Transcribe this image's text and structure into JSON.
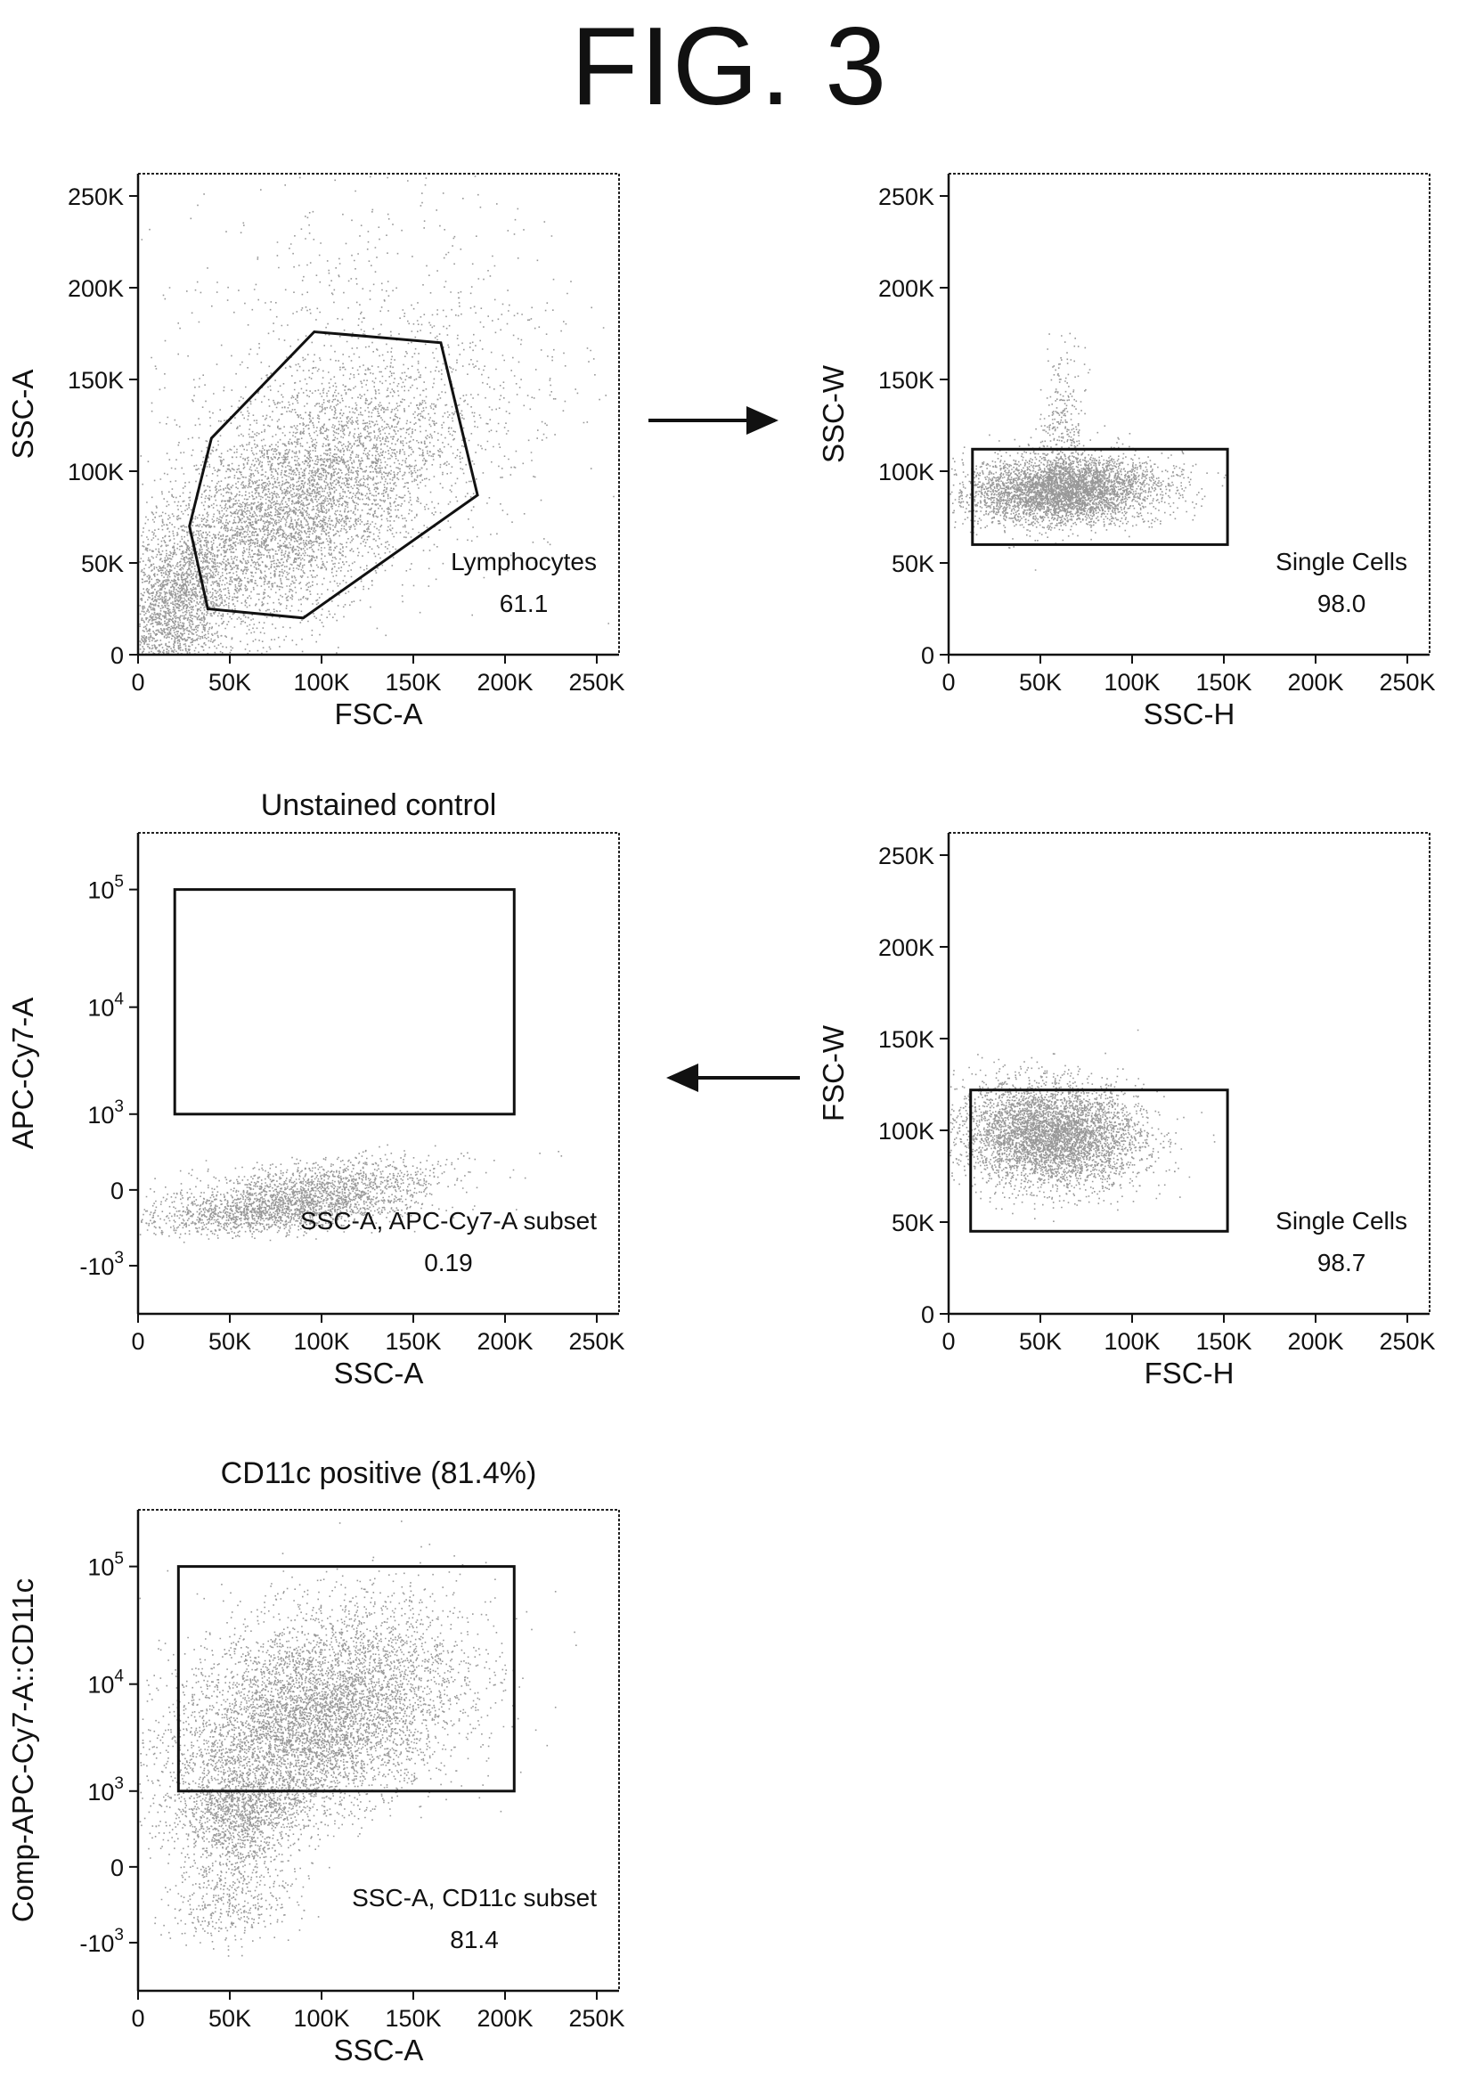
{
  "figure": {
    "title": "FIG. 3"
  },
  "chart_data": [
    {
      "type": "scatter",
      "id": "p1",
      "title": "",
      "xlabel": "FSC-A",
      "ylabel": "SSC-A",
      "xscale": "linear",
      "yscale": "linear",
      "xlim": [
        0,
        262144
      ],
      "ylim": [
        0,
        262144
      ],
      "xticks": [
        {
          "v": 0,
          "label": "0"
        },
        {
          "v": 50000,
          "label": "50K"
        },
        {
          "v": 100000,
          "label": "100K"
        },
        {
          "v": 150000,
          "label": "150K"
        },
        {
          "v": 200000,
          "label": "200K"
        },
        {
          "v": 250000,
          "label": "250K"
        }
      ],
      "yticks": [
        {
          "v": 0,
          "label": "0"
        },
        {
          "v": 50000,
          "label": "50K"
        },
        {
          "v": 100000,
          "label": "100K"
        },
        {
          "v": 150000,
          "label": "150K"
        },
        {
          "v": 200000,
          "label": "200K"
        },
        {
          "v": 250000,
          "label": "250K"
        }
      ],
      "gate": {
        "shape": "polygon",
        "points": [
          [
            28000,
            70000
          ],
          [
            40000,
            118000
          ],
          [
            96000,
            176000
          ],
          [
            165000,
            170000
          ],
          [
            185000,
            87000
          ],
          [
            90000,
            20000
          ],
          [
            38000,
            25000
          ]
        ]
      },
      "annotation": {
        "label": "Lymphocytes",
        "value": "61.1"
      },
      "populations": [
        {
          "cx": 82000,
          "cy": 78000,
          "sx": 42000,
          "sy": 36000,
          "rho": 0.6,
          "n": 5200
        },
        {
          "cx": 18000,
          "cy": 25000,
          "sx": 14000,
          "sy": 22000,
          "rho": 0.3,
          "n": 1600
        },
        {
          "cx": 120000,
          "cy": 140000,
          "sx": 60000,
          "sy": 60000,
          "rho": 0.2,
          "n": 1200
        }
      ]
    },
    {
      "type": "scatter",
      "id": "p2",
      "title": "",
      "xlabel": "SSC-H",
      "ylabel": "SSC-W",
      "xscale": "linear",
      "yscale": "linear",
      "xlim": [
        0,
        262144
      ],
      "ylim": [
        0,
        262144
      ],
      "xticks": [
        {
          "v": 0,
          "label": "0"
        },
        {
          "v": 50000,
          "label": "50K"
        },
        {
          "v": 100000,
          "label": "100K"
        },
        {
          "v": 150000,
          "label": "150K"
        },
        {
          "v": 200000,
          "label": "200K"
        },
        {
          "v": 250000,
          "label": "250K"
        }
      ],
      "yticks": [
        {
          "v": 0,
          "label": "0"
        },
        {
          "v": 50000,
          "label": "50K"
        },
        {
          "v": 100000,
          "label": "100K"
        },
        {
          "v": 150000,
          "label": "150K"
        },
        {
          "v": 200000,
          "label": "200K"
        },
        {
          "v": 250000,
          "label": "250K"
        }
      ],
      "gate": {
        "shape": "rect",
        "x": [
          13000,
          152000
        ],
        "y": [
          60000,
          112000
        ]
      },
      "annotation": {
        "label": "Single Cells",
        "value": "98.0"
      },
      "populations": [
        {
          "cx": 62000,
          "cy": 90000,
          "sx": 26000,
          "sy": 9000,
          "rho": 0.1,
          "n": 4200
        },
        {
          "cx": 62000,
          "cy": 120000,
          "sx": 6000,
          "sy": 22000,
          "rho": 0.0,
          "n": 320
        }
      ]
    },
    {
      "type": "scatter",
      "id": "p3",
      "title": "Unstained control",
      "xlabel": "SSC-A",
      "ylabel": "APC-Cy7-A",
      "xscale": "linear",
      "yscale": "biexponential",
      "xlim": [
        0,
        262144
      ],
      "ylim": [
        -3000,
        300000
      ],
      "xticks": [
        {
          "v": 0,
          "label": "0"
        },
        {
          "v": 50000,
          "label": "50K"
        },
        {
          "v": 100000,
          "label": "100K"
        },
        {
          "v": 150000,
          "label": "150K"
        },
        {
          "v": 200000,
          "label": "200K"
        },
        {
          "v": 250000,
          "label": "250K"
        }
      ],
      "yticks": [
        {
          "v": -1000,
          "base": "-10",
          "exp": "3"
        },
        {
          "v": 0,
          "base": "0",
          "exp": ""
        },
        {
          "v": 1000,
          "base": "10",
          "exp": "3"
        },
        {
          "v": 10000,
          "base": "10",
          "exp": "4"
        },
        {
          "v": 100000,
          "base": "10",
          "exp": "5"
        }
      ],
      "gate": {
        "shape": "rect",
        "x": [
          20000,
          205000
        ],
        "y": [
          1000,
          100000
        ]
      },
      "annotation": {
        "label": "SSC-A, APC-Cy7-A subset",
        "value": "0.19"
      },
      "populations": [
        {
          "cx": 85000,
          "cy": -80,
          "sx": 38000,
          "sy": 140,
          "rho": 0.5,
          "n": 2600
        }
      ]
    },
    {
      "type": "scatter",
      "id": "p4",
      "title": "",
      "xlabel": "FSC-H",
      "ylabel": "FSC-W",
      "xscale": "linear",
      "yscale": "linear",
      "xlim": [
        0,
        262144
      ],
      "ylim": [
        0,
        262144
      ],
      "xticks": [
        {
          "v": 0,
          "label": "0"
        },
        {
          "v": 50000,
          "label": "50K"
        },
        {
          "v": 100000,
          "label": "100K"
        },
        {
          "v": 150000,
          "label": "150K"
        },
        {
          "v": 200000,
          "label": "200K"
        },
        {
          "v": 250000,
          "label": "250K"
        }
      ],
      "yticks": [
        {
          "v": 0,
          "label": "0"
        },
        {
          "v": 50000,
          "label": "50K"
        },
        {
          "v": 100000,
          "label": "100K"
        },
        {
          "v": 150000,
          "label": "150K"
        },
        {
          "v": 200000,
          "label": "200K"
        },
        {
          "v": 250000,
          "label": "250K"
        }
      ],
      "gate": {
        "shape": "rect",
        "x": [
          12000,
          152000
        ],
        "y": [
          45000,
          122000
        ]
      },
      "annotation": {
        "label": "Single Cells",
        "value": "98.7"
      },
      "populations": [
        {
          "cx": 55000,
          "cy": 98000,
          "sx": 25000,
          "sy": 14000,
          "rho": -0.1,
          "n": 4600
        }
      ]
    },
    {
      "type": "scatter",
      "id": "p5",
      "title": "CD11c positive (81.4%)",
      "xlabel": "SSC-A",
      "ylabel": "Comp-APC-Cy7-A::CD11c",
      "xscale": "linear",
      "yscale": "biexponential",
      "xlim": [
        0,
        262144
      ],
      "ylim": [
        -3000,
        300000
      ],
      "xticks": [
        {
          "v": 0,
          "label": "0"
        },
        {
          "v": 50000,
          "label": "50K"
        },
        {
          "v": 100000,
          "label": "100K"
        },
        {
          "v": 150000,
          "label": "150K"
        },
        {
          "v": 200000,
          "label": "200K"
        },
        {
          "v": 250000,
          "label": "250K"
        }
      ],
      "yticks": [
        {
          "v": -1000,
          "base": "-10",
          "exp": "3"
        },
        {
          "v": 0,
          "base": "0",
          "exp": ""
        },
        {
          "v": 1000,
          "base": "10",
          "exp": "3"
        },
        {
          "v": 10000,
          "base": "10",
          "exp": "4"
        },
        {
          "v": 100000,
          "base": "10",
          "exp": "5"
        }
      ],
      "gate": {
        "shape": "rect",
        "x": [
          22000,
          205000
        ],
        "y": [
          1000,
          100000
        ]
      },
      "annotation": {
        "label": "SSC-A, CD11c subset",
        "value": "81.4"
      },
      "populations": [
        {
          "cx": 95000,
          "cy": 5000,
          "sx": 40000,
          "sy": 0.48,
          "rho": 0.35,
          "n": 6200,
          "logy": true
        },
        {
          "cx": 55000,
          "cy": 300,
          "sx": 18000,
          "sy": 500,
          "rho": 0.2,
          "n": 1600
        }
      ]
    }
  ],
  "arrows": [
    {
      "from": "p1",
      "to": "p2",
      "direction": "right"
    },
    {
      "from": "p4",
      "to": "p3",
      "direction": "left"
    }
  ]
}
